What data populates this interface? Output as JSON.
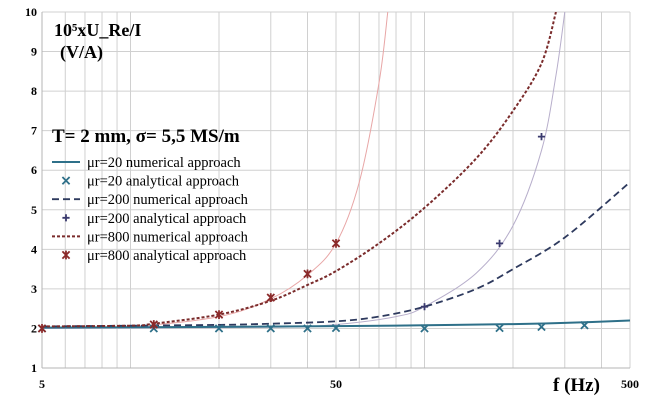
{
  "chart_data": {
    "type": "line",
    "ylabel": "10⁵xU_Re/I",
    "ylabel_unit": "(V/A)",
    "xlabel": "f (Hz)",
    "conditions": "T= 2 mm,   σ= 5,5 MS/m",
    "x_scale": "log",
    "xlim": [
      5,
      500
    ],
    "ylim": [
      1,
      10
    ],
    "x_ticks": [
      5,
      50,
      500
    ],
    "y_ticks": [
      1,
      2,
      3,
      4,
      5,
      6,
      7,
      8,
      9,
      10
    ],
    "grid": true,
    "legend_position": "top-left",
    "series": [
      {
        "name": "μr=20 numerical approach",
        "style": "solid",
        "color": "#2e7089",
        "x": [
          5,
          10,
          20,
          50,
          100,
          200,
          300,
          500
        ],
        "y": [
          2.02,
          2.03,
          2.04,
          2.06,
          2.08,
          2.11,
          2.14,
          2.2
        ]
      },
      {
        "name": "μr=20 analytical approach",
        "style": "x-marker",
        "color": "#2e7089",
        "x": [
          5,
          12,
          20,
          30,
          40,
          50,
          100,
          180,
          250,
          350
        ],
        "y": [
          2.0,
          2.0,
          2.0,
          2.0,
          2.0,
          2.01,
          2.0,
          2.01,
          2.04,
          2.08
        ]
      },
      {
        "name": "μr=200 numerical approach",
        "style": "dashed",
        "color": "#2e3a5e",
        "x": [
          5,
          10,
          20,
          30,
          50,
          70,
          100,
          150,
          200,
          300,
          500
        ],
        "y": [
          2.05,
          2.07,
          2.09,
          2.12,
          2.18,
          2.3,
          2.55,
          3.0,
          3.5,
          4.3,
          5.7
        ]
      },
      {
        "name": "μr=200 analytical approach",
        "style": "plus-marker",
        "color": "#3a3a6e",
        "x": [
          100,
          180,
          250
        ],
        "y": [
          2.55,
          4.15,
          6.85
        ]
      },
      {
        "name": "μr=800 numerical approach",
        "style": "dotted",
        "color": "#7a2b2b",
        "x": [
          5,
          10,
          12,
          20,
          30,
          40,
          50,
          70,
          100,
          150,
          200,
          250,
          280
        ],
        "y": [
          2.05,
          2.07,
          2.12,
          2.35,
          2.7,
          3.1,
          3.45,
          4.15,
          5.05,
          6.3,
          7.5,
          8.7,
          10.0
        ]
      },
      {
        "name": "μr=800 analytical approach",
        "style": "star-marker",
        "color": "#8b2a2a",
        "x": [
          5,
          12,
          20,
          30,
          40,
          50
        ],
        "y": [
          2.0,
          2.1,
          2.35,
          2.78,
          3.38,
          4.15
        ]
      }
    ],
    "trend_lines": [
      {
        "color": "#e8a6a6",
        "x": [
          5,
          10,
          20,
          30,
          40,
          50,
          60,
          70,
          75
        ],
        "y": [
          2.0,
          2.05,
          2.3,
          2.75,
          3.35,
          4.15,
          5.7,
          8.2,
          10.0
        ]
      },
      {
        "color": "#b7aecb",
        "x": [
          5,
          30,
          50,
          80,
          100,
          150,
          200,
          250,
          280,
          300
        ],
        "y": [
          2.0,
          2.03,
          2.1,
          2.3,
          2.55,
          3.4,
          4.6,
          6.5,
          8.4,
          10.0
        ]
      }
    ]
  }
}
